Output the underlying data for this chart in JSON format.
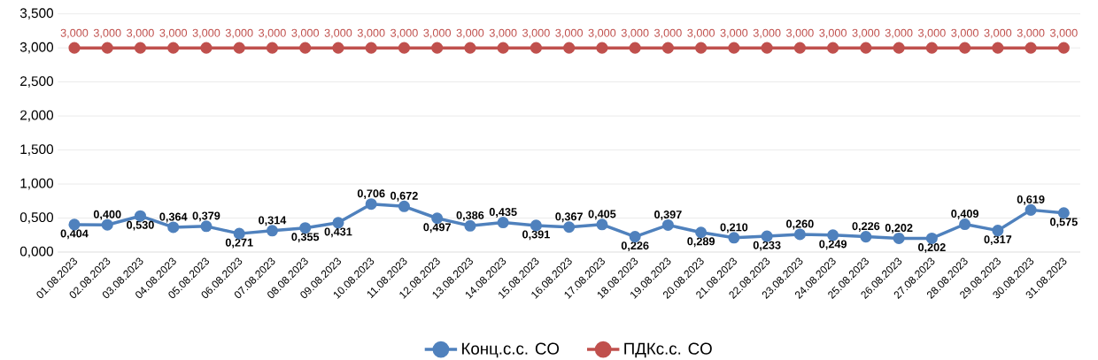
{
  "chart_data": {
    "type": "line",
    "categories": [
      "01.08.2023",
      "02.08.2023",
      "03.08.2023",
      "04.08.2023",
      "05.08.2023",
      "06.08.2023",
      "07.08.2023",
      "08.08.2023",
      "09.08.2023",
      "10.08.2023",
      "11.08.2023",
      "12.08.2023",
      "13.08.2023",
      "14.08.2023",
      "15.08.2023",
      "16.08.2023",
      "17.08.2023",
      "18.08.2023",
      "19.08.2023",
      "20.08.2023",
      "21.08.2023",
      "22.08.2023",
      "23.08.2023",
      "24.08.2023",
      "25.08.2023",
      "26.08.2023",
      "27.08.2023",
      "28.08.2023",
      "29.08.2023",
      "30.08.2023",
      "31.08.2023"
    ],
    "series": [
      {
        "name": "Конц.с.с. CO",
        "color": "#4f81bd",
        "values": [
          0.404,
          0.4,
          0.53,
          0.364,
          0.379,
          0.271,
          0.314,
          0.355,
          0.431,
          0.706,
          0.672,
          0.497,
          0.386,
          0.435,
          0.391,
          0.367,
          0.405,
          0.226,
          0.397,
          0.289,
          0.21,
          0.233,
          0.26,
          0.249,
          0.226,
          0.202,
          0.202,
          0.409,
          0.317,
          0.619,
          0.575
        ],
        "value_labels": [
          "0,404",
          "0,400",
          "0,530",
          "0,364",
          "0,379",
          "0,271",
          "0,314",
          "0,355",
          "0,431",
          "0,706",
          "0,672",
          "0,497",
          "0,386",
          "0,435",
          "0,391",
          "0,367",
          "0,405",
          "0,226",
          "0,397",
          "0,289",
          "0,210",
          "0,233",
          "0,260",
          "0,249",
          "0,226",
          "0,202",
          "0,202",
          "0,409",
          "0,317",
          "0,619",
          "0,575"
        ]
      },
      {
        "name": "ПДКс.с. CO",
        "color": "#c0504d",
        "values": [
          3,
          3,
          3,
          3,
          3,
          3,
          3,
          3,
          3,
          3,
          3,
          3,
          3,
          3,
          3,
          3,
          3,
          3,
          3,
          3,
          3,
          3,
          3,
          3,
          3,
          3,
          3,
          3,
          3,
          3,
          3
        ],
        "value_labels": [
          "3,000",
          "3,000",
          "3,000",
          "3,000",
          "3,000",
          "3,000",
          "3,000",
          "3,000",
          "3,000",
          "3,000",
          "3,000",
          "3,000",
          "3,000",
          "3,000",
          "3,000",
          "3,000",
          "3,000",
          "3,000",
          "3,000",
          "3,000",
          "3,000",
          "3,000",
          "3,000",
          "3,000",
          "3,000",
          "3,000",
          "3,000",
          "3,000",
          "3,000",
          "3,000",
          "3,000"
        ]
      }
    ],
    "ylim": [
      0,
      3.5
    ],
    "yticks": [
      {
        "value": 0,
        "label": "0,000"
      },
      {
        "value": 0.5,
        "label": "0,500"
      },
      {
        "value": 1,
        "label": "1,000"
      },
      {
        "value": 1.5,
        "label": "1,500"
      },
      {
        "value": 2,
        "label": "2,000"
      },
      {
        "value": 2.5,
        "label": "2,500"
      },
      {
        "value": 3,
        "label": "3,000"
      },
      {
        "value": 3.5,
        "label": "3,500"
      }
    ],
    "grid": "y",
    "legend": "bottom",
    "marker": "circle",
    "line_style": "solid"
  }
}
